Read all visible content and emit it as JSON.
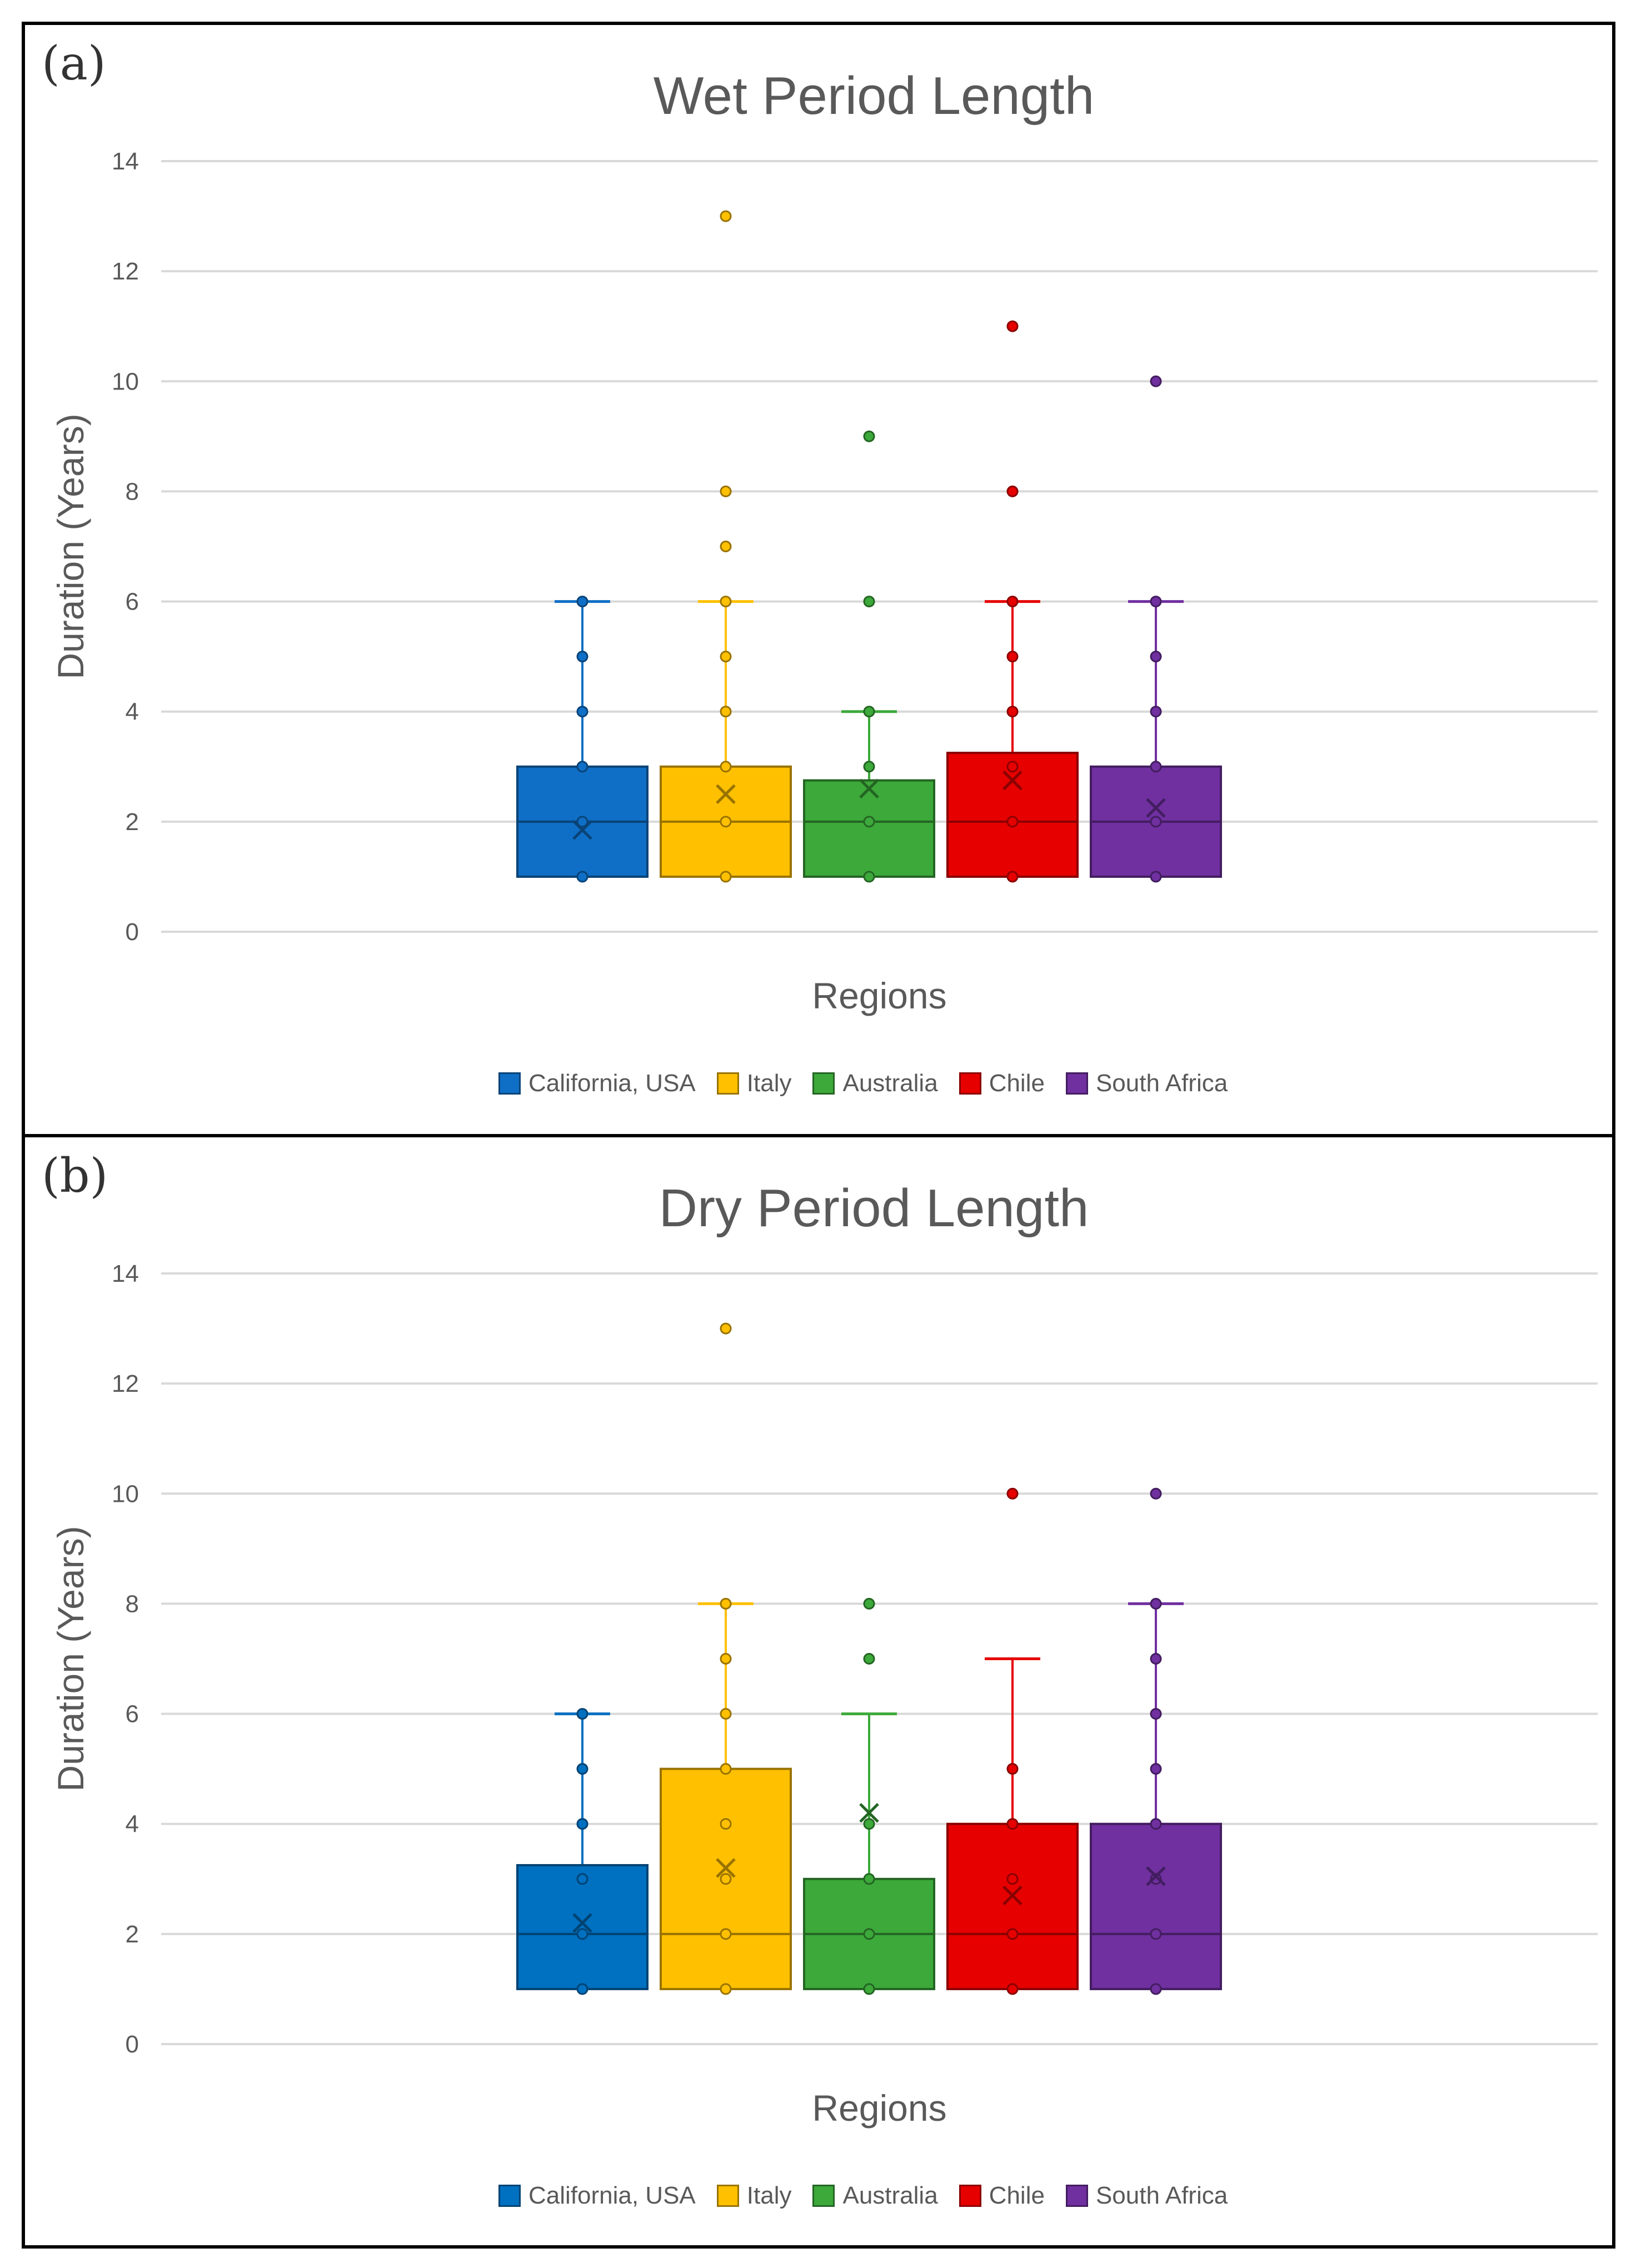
{
  "panels": [
    {
      "label": "(a)"
    },
    {
      "label": "(b)"
    }
  ],
  "chart_data": [
    {
      "type": "box",
      "title": "Wet Period Length",
      "xlabel": "Regions",
      "ylabel": "Duration (Years)",
      "ylim": [
        0,
        14
      ],
      "yticks": [
        0,
        2,
        4,
        6,
        8,
        10,
        12,
        14
      ],
      "grid": true,
      "legend_position": "bottom",
      "series": [
        {
          "name": "California, USA",
          "color": "#0F6FC6",
          "q1": 1,
          "median": 2,
          "q3": 3,
          "whisker_low": 1,
          "whisker_high": 6,
          "mean": 1.85,
          "points": [
            1,
            2,
            3,
            4,
            5,
            6
          ],
          "outliers": []
        },
        {
          "name": "Italy",
          "color": "#FFC000",
          "q1": 1,
          "median": 2,
          "q3": 3,
          "whisker_low": 1,
          "whisker_high": 6,
          "mean": 2.5,
          "points": [
            1,
            2,
            3,
            4,
            5,
            6
          ],
          "outliers": [
            7,
            8,
            13
          ]
        },
        {
          "name": "Australia",
          "color": "#3CA93A",
          "q1": 1,
          "median": 2,
          "q3": 2.75,
          "whisker_low": 1,
          "whisker_high": 4,
          "mean": 2.6,
          "points": [
            1,
            2,
            3,
            4
          ],
          "outliers": [
            6,
            9
          ]
        },
        {
          "name": "Chile",
          "color": "#E60000",
          "q1": 1,
          "median": 2,
          "q3": 3.25,
          "whisker_low": 1,
          "whisker_high": 6,
          "mean": 2.75,
          "points": [
            1,
            2,
            3,
            4,
            5,
            6
          ],
          "outliers": [
            8,
            11
          ]
        },
        {
          "name": "South Africa",
          "color": "#7030A0",
          "q1": 1,
          "median": 2,
          "q3": 3,
          "whisker_low": 1,
          "whisker_high": 6,
          "mean": 2.25,
          "points": [
            1,
            2,
            3,
            4,
            5,
            6
          ],
          "outliers": [
            10
          ]
        }
      ]
    },
    {
      "type": "box",
      "title": "Dry Period Length",
      "xlabel": "Regions",
      "ylabel": "Duration (Years)",
      "ylim": [
        0,
        14
      ],
      "yticks": [
        0,
        2,
        4,
        6,
        8,
        10,
        12,
        14
      ],
      "grid": true,
      "legend_position": "bottom",
      "series": [
        {
          "name": "California, USA",
          "color": "#0070C0",
          "q1": 1,
          "median": 2,
          "q3": 3.25,
          "whisker_low": 1,
          "whisker_high": 6,
          "mean": 2.2,
          "points": [
            1,
            2,
            3,
            4,
            5,
            6
          ],
          "outliers": []
        },
        {
          "name": "Italy",
          "color": "#FFC000",
          "q1": 1,
          "median": 2,
          "q3": 5,
          "whisker_low": 1,
          "whisker_high": 8,
          "mean": 3.2,
          "points": [
            1,
            2,
            3,
            4,
            5,
            6,
            7,
            8
          ],
          "outliers": [
            13
          ]
        },
        {
          "name": "Australia",
          "color": "#3CA93A",
          "q1": 1,
          "median": 2,
          "q3": 3,
          "whisker_low": 1,
          "whisker_high": 6,
          "mean": 4.2,
          "points": [
            1,
            2,
            3,
            4
          ],
          "outliers": [
            7,
            8
          ]
        },
        {
          "name": "Chile",
          "color": "#E60000",
          "q1": 1,
          "median": 2,
          "q3": 4,
          "whisker_low": 1,
          "whisker_high": 7,
          "mean": 2.7,
          "points": [
            1,
            2,
            3,
            4,
            5
          ],
          "outliers": [
            10
          ]
        },
        {
          "name": "South Africa",
          "color": "#7030A0",
          "q1": 1,
          "median": 2,
          "q3": 4,
          "whisker_low": 1,
          "whisker_high": 8,
          "mean": 3.05,
          "points": [
            1,
            2,
            3,
            4,
            5,
            6,
            7,
            8
          ],
          "outliers": [
            10
          ]
        }
      ]
    }
  ]
}
